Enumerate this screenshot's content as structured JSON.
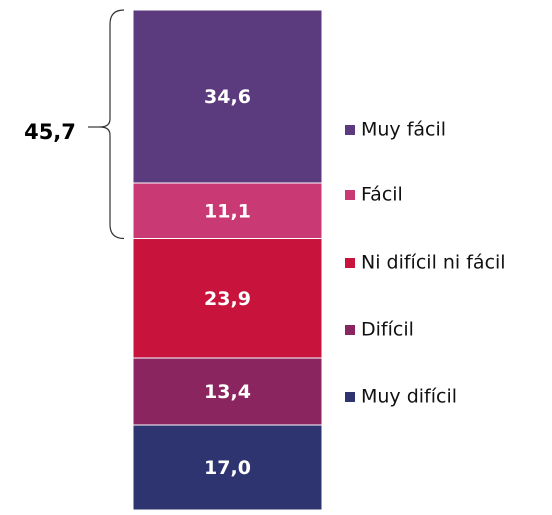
{
  "chart_data": {
    "type": "stacked_bar",
    "series": [
      {
        "name": "Muy difícil",
        "color": "#2e3470",
        "values": [
          17.0
        ],
        "value_labels": [
          "17,0"
        ]
      },
      {
        "name": "Difícil",
        "color": "#8b2560",
        "values": [
          13.4
        ],
        "value_labels": [
          "13,4"
        ]
      },
      {
        "name": "Ni difícil ni fácil",
        "color": "#c8143c",
        "values": [
          23.9
        ],
        "value_labels": [
          "23,9"
        ]
      },
      {
        "name": "Fácil",
        "color": "#c93a75",
        "values": [
          11.1
        ],
        "value_labels": [
          "11,1"
        ]
      },
      {
        "name": "Muy fácil",
        "color": "#5b3a7e",
        "values": [
          34.6
        ],
        "value_labels": [
          "34,6"
        ]
      }
    ],
    "annotation": {
      "value": 45.7,
      "label": "45,7"
    }
  }
}
